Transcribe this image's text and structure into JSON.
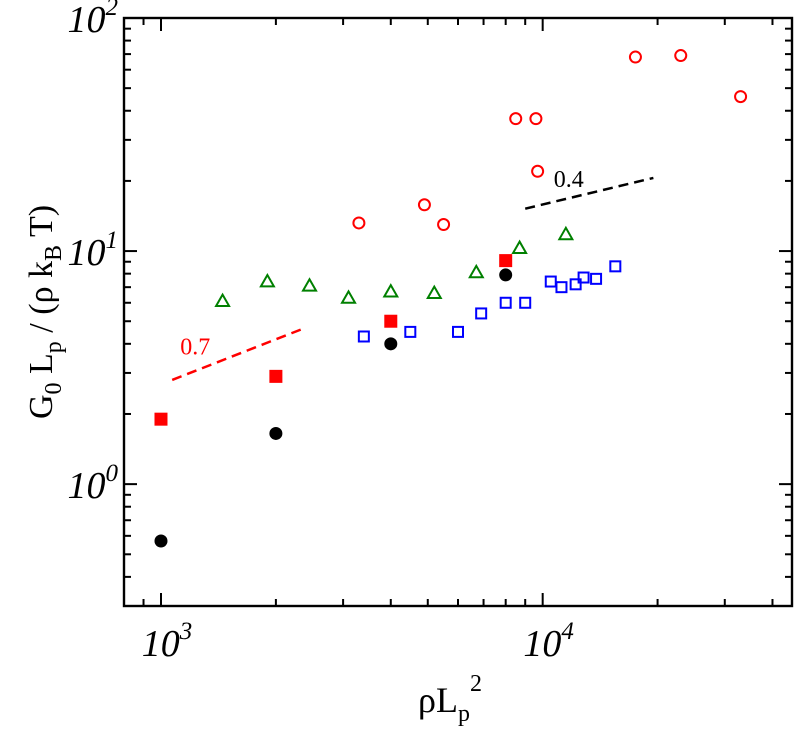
{
  "chart_data": {
    "type": "scatter",
    "xscale": "log",
    "yscale": "log",
    "xlim": [
      800,
      45000
    ],
    "ylim": [
      0.3,
      100
    ],
    "x_ticks": [
      {
        "value": 1000,
        "base": "10",
        "exp": "3"
      },
      {
        "value": 10000,
        "base": "10",
        "exp": "4"
      }
    ],
    "y_ticks": [
      {
        "value": 1,
        "base": "10",
        "exp": "0"
      },
      {
        "value": 10,
        "base": "10",
        "exp": "1"
      },
      {
        "value": 100,
        "base": "10",
        "exp": "2"
      }
    ],
    "xlabel": {
      "main": "ρL",
      "sub": "p",
      "sup": "2"
    },
    "ylabel": {
      "g": "G",
      "g_sub": "0",
      "l": " L",
      "l_sub": "p",
      "mid": " / (ρ k",
      "k_sub": "B",
      "end": " T)"
    },
    "series": [
      {
        "name": "open-circles",
        "marker": "circle-open",
        "color": "#ff0000",
        "points": [
          [
            3300,
            13.2
          ],
          [
            4900,
            15.8
          ],
          [
            5500,
            13.0
          ],
          [
            8500,
            37
          ],
          [
            9600,
            37
          ],
          [
            9700,
            22
          ],
          [
            17500,
            68
          ],
          [
            23000,
            69
          ],
          [
            33000,
            46
          ]
        ]
      },
      {
        "name": "open-triangles",
        "marker": "triangle-open",
        "color": "#008000",
        "points": [
          [
            1450,
            6.1
          ],
          [
            1900,
            7.4
          ],
          [
            2450,
            7.1
          ],
          [
            3100,
            6.3
          ],
          [
            4000,
            6.7
          ],
          [
            5200,
            6.6
          ],
          [
            6700,
            8.1
          ],
          [
            8700,
            10.3
          ],
          [
            11500,
            11.8
          ]
        ]
      },
      {
        "name": "open-squares",
        "marker": "square-open",
        "color": "#0000ff",
        "points": [
          [
            3400,
            4.3
          ],
          [
            4500,
            4.5
          ],
          [
            6000,
            4.5
          ],
          [
            6900,
            5.4
          ],
          [
            8000,
            6.0
          ],
          [
            9000,
            6.0
          ],
          [
            10500,
            7.4
          ],
          [
            11200,
            7.0
          ],
          [
            12200,
            7.2
          ],
          [
            12800,
            7.7
          ],
          [
            13800,
            7.6
          ],
          [
            15500,
            8.6
          ]
        ]
      },
      {
        "name": "filled-squares",
        "marker": "square-filled",
        "color": "#ff0000",
        "points": [
          [
            1000,
            1.9
          ],
          [
            2000,
            2.9
          ],
          [
            4000,
            5.0
          ],
          [
            8000,
            9.1
          ]
        ]
      },
      {
        "name": "filled-circles",
        "marker": "circle-filled",
        "color": "#000000",
        "points": [
          [
            1000,
            0.57
          ],
          [
            2000,
            1.65
          ],
          [
            4000,
            4.0
          ],
          [
            8000,
            7.9
          ]
        ]
      }
    ],
    "annotations": [
      {
        "name": "slope-07",
        "text": "0.7",
        "color": "#ff0000",
        "line": [
          [
            1070,
            2.8
          ],
          [
            2400,
            4.7
          ]
        ],
        "text_at": [
          1230,
          3.6
        ]
      },
      {
        "name": "slope-04",
        "text": "0.4",
        "color": "#000000",
        "line": [
          [
            9000,
            15.2
          ],
          [
            19500,
            20.6
          ]
        ],
        "text_at": [
          11700,
          18.8
        ]
      }
    ]
  }
}
